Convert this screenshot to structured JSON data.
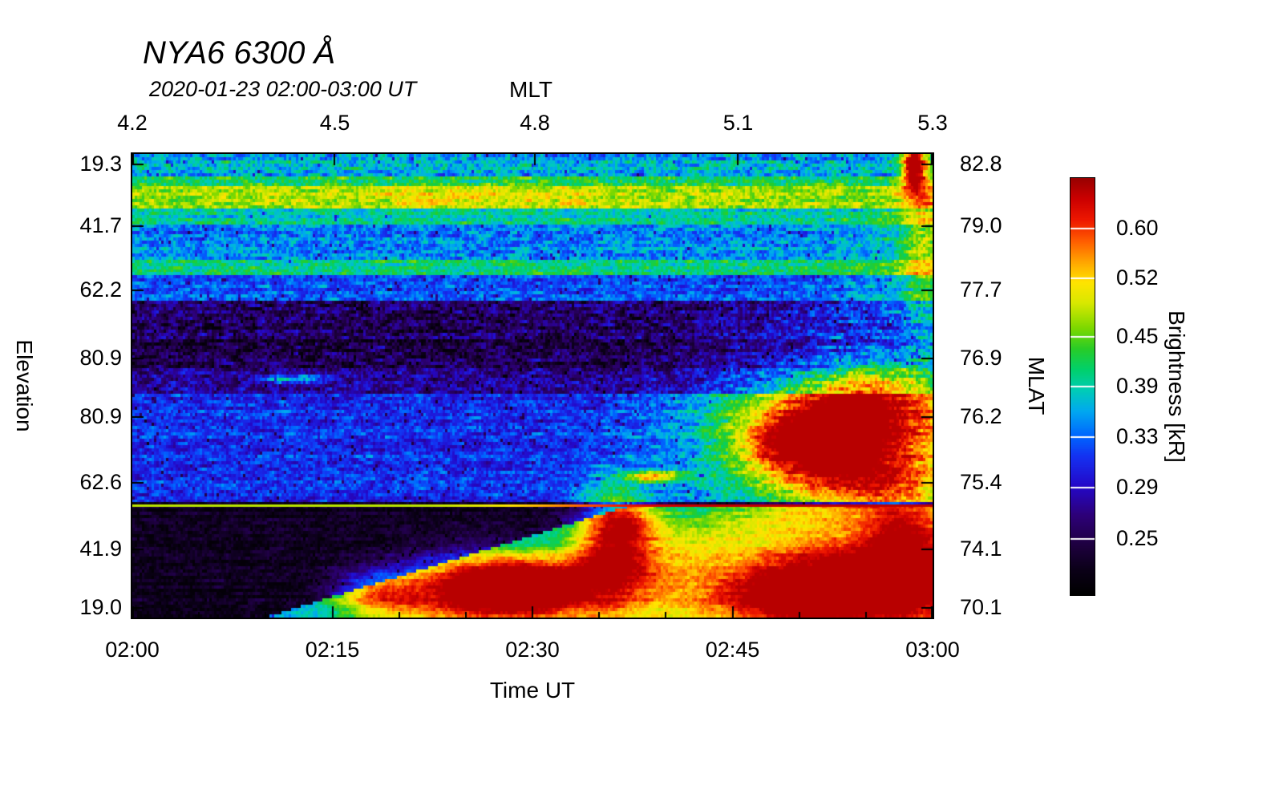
{
  "title": "NYA6 6300 Å",
  "subtitle": "2020-01-23 02:00-03:00 UT",
  "axes": {
    "top": {
      "label": "MLT",
      "ticks": [
        {
          "label": "4.2",
          "f": 0.0
        },
        {
          "label": "4.5",
          "f": 0.253
        },
        {
          "label": "4.8",
          "f": 0.503
        },
        {
          "label": "5.1",
          "f": 0.757
        },
        {
          "label": "5.3",
          "f": 1.0
        }
      ]
    },
    "bottom": {
      "label": "Time UT",
      "ticks": [
        {
          "label": "02:00",
          "f": 0.0
        },
        {
          "label": "02:15",
          "f": 0.25
        },
        {
          "label": "02:30",
          "f": 0.5
        },
        {
          "label": "02:45",
          "f": 0.75
        },
        {
          "label": "03:00",
          "f": 1.0
        }
      ]
    },
    "left": {
      "label": "Elevation",
      "ticks": [
        {
          "label": "19.3",
          "f": 0.022
        },
        {
          "label": "41.7",
          "f": 0.156
        },
        {
          "label": "62.2",
          "f": 0.294
        },
        {
          "label": "80.9",
          "f": 0.441
        },
        {
          "label": "80.9",
          "f": 0.567
        },
        {
          "label": "62.6",
          "f": 0.709
        },
        {
          "label": "41.9",
          "f": 0.853
        },
        {
          "label": "19.0",
          "f": 0.979
        }
      ]
    },
    "right": {
      "label": "MLAT",
      "ticks": [
        {
          "label": "82.8",
          "f": 0.022
        },
        {
          "label": "79.0",
          "f": 0.156
        },
        {
          "label": "77.7",
          "f": 0.294
        },
        {
          "label": "76.9",
          "f": 0.441
        },
        {
          "label": "76.2",
          "f": 0.567
        },
        {
          "label": "75.4",
          "f": 0.709
        },
        {
          "label": "74.1",
          "f": 0.853
        },
        {
          "label": "70.1",
          "f": 0.979
        }
      ]
    }
  },
  "colorbar": {
    "label": "Brightness [kR]",
    "ticks": [
      {
        "label": "0.60",
        "f_top": 0.121
      },
      {
        "label": "0.52",
        "f_top": 0.24
      },
      {
        "label": "0.45",
        "f_top": 0.381
      },
      {
        "label": "0.39",
        "f_top": 0.5
      },
      {
        "label": "0.33",
        "f_top": 0.621
      },
      {
        "label": "0.29",
        "f_top": 0.742
      },
      {
        "label": "0.25",
        "f_top": 0.865
      }
    ],
    "stops": [
      [
        0.0,
        "#000000"
      ],
      [
        0.06,
        "#0b0018"
      ],
      [
        0.12,
        "#1e0040"
      ],
      [
        0.19,
        "#2d0078"
      ],
      [
        0.26,
        "#2408c8"
      ],
      [
        0.33,
        "#1530f0"
      ],
      [
        0.38,
        "#0064ff"
      ],
      [
        0.44,
        "#00a8f0"
      ],
      [
        0.49,
        "#00ccb8"
      ],
      [
        0.54,
        "#00d06c"
      ],
      [
        0.59,
        "#28cc28"
      ],
      [
        0.64,
        "#7cd800"
      ],
      [
        0.7,
        "#d8e800"
      ],
      [
        0.75,
        "#ffe400"
      ],
      [
        0.8,
        "#ffa400"
      ],
      [
        0.85,
        "#ff5c00"
      ],
      [
        0.9,
        "#ee1800"
      ],
      [
        0.95,
        "#cc0000"
      ],
      [
        1.0,
        "#990000"
      ]
    ]
  },
  "chart_data": {
    "type": "heatmap",
    "title": "NYA6 6300 Å",
    "subtitle": "2020-01-23 02:00-03:00 UT",
    "x_axis": {
      "label": "Time UT",
      "ticks": [
        "02:00",
        "02:15",
        "02:30",
        "02:45",
        "03:00"
      ]
    },
    "top_axis": {
      "label": "MLT",
      "ticks": [
        4.2,
        4.5,
        4.8,
        5.1,
        5.3
      ]
    },
    "y_axis_left": {
      "label": "Elevation",
      "ticks": [
        19.3,
        41.7,
        62.2,
        80.9,
        80.9,
        62.6,
        41.9,
        19.0
      ]
    },
    "y_axis_right": {
      "label": "MLAT",
      "ticks": [
        82.8,
        79.0,
        77.7,
        76.9,
        76.2,
        75.4,
        74.1,
        70.1
      ]
    },
    "colorbar": {
      "label": "Brightness [kR]",
      "tick_values": [
        0.6,
        0.52,
        0.45,
        0.39,
        0.33,
        0.29,
        0.25
      ]
    },
    "grid": {
      "cols": 333,
      "rows": 145,
      "seed": 20200123
    },
    "bands": [
      [
        0.0,
        0.045,
        0.45,
        0.1
      ],
      [
        0.045,
        0.072,
        0.55,
        0.09
      ],
      [
        0.072,
        0.115,
        0.66,
        0.08
      ],
      [
        0.115,
        0.15,
        0.5,
        0.08
      ],
      [
        0.15,
        0.225,
        0.4,
        0.09
      ],
      [
        0.225,
        0.265,
        0.52,
        0.08
      ],
      [
        0.265,
        0.315,
        0.36,
        0.08
      ],
      [
        0.315,
        0.4,
        0.15,
        0.11
      ],
      [
        0.4,
        0.46,
        0.13,
        0.1
      ],
      [
        0.46,
        0.52,
        0.22,
        0.1
      ],
      [
        0.52,
        0.75,
        0.32,
        0.08
      ],
      [
        0.75,
        1.001,
        0.07,
        0.05
      ]
    ],
    "modifiers": [
      [
        0.315,
        0.52,
        0.62,
        1.0,
        0.18
      ],
      [
        0.52,
        0.75,
        0.55,
        0.95,
        0.22
      ],
      [
        0.125,
        0.315,
        0.8,
        1.0,
        0.08
      ]
    ],
    "wedge": {
      "y0": 0.758,
      "x_top": 0.625,
      "slope": 1.9,
      "v": 0.46,
      "grad": 0.18,
      "gradw": 0.25
    },
    "line": {
      "y": 0.758,
      "v0": 0.68,
      "v1": 0.96,
      "x0": 0.35,
      "x1": 0.72,
      "px": 3
    },
    "blobs": [
      [
        0.31,
        0.95,
        0.04,
        0.035,
        0.35
      ],
      [
        0.42,
        0.93,
        0.06,
        0.05,
        0.42
      ],
      [
        0.5,
        0.935,
        0.055,
        0.045,
        0.45
      ],
      [
        0.6,
        0.85,
        0.035,
        0.09,
        0.35
      ],
      [
        0.615,
        0.79,
        0.03,
        0.04,
        0.22
      ],
      [
        0.68,
        0.93,
        0.07,
        0.07,
        0.12
      ],
      [
        0.9,
        0.93,
        0.09,
        0.07,
        0.45
      ],
      [
        0.82,
        0.96,
        0.06,
        0.04,
        0.25
      ],
      [
        0.965,
        0.87,
        0.035,
        0.09,
        0.3
      ],
      [
        0.885,
        0.585,
        0.07,
        0.06,
        0.48
      ],
      [
        0.82,
        0.64,
        0.045,
        0.045,
        0.25
      ],
      [
        0.88,
        0.61,
        0.13,
        0.11,
        0.15
      ],
      [
        0.91,
        0.7,
        0.06,
        0.045,
        0.25
      ],
      [
        0.93,
        0.5,
        0.05,
        0.04,
        0.18
      ],
      [
        0.977,
        0.025,
        0.01,
        0.035,
        0.6
      ],
      [
        0.99,
        0.2,
        0.02,
        0.18,
        0.18
      ],
      [
        0.655,
        0.695,
        0.03,
        0.008,
        0.4
      ],
      [
        0.2,
        0.485,
        0.035,
        0.006,
        0.28
      ],
      [
        0.42,
        0.09,
        0.12,
        0.018,
        0.08
      ]
    ]
  }
}
